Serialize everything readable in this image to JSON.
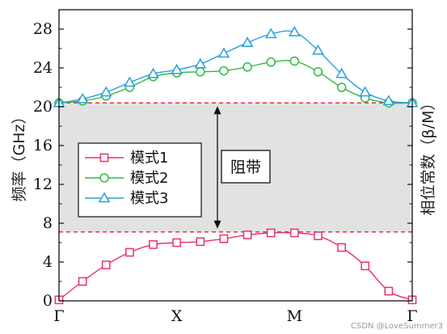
{
  "chart_data": {
    "type": "line",
    "title": "",
    "xlabel": "",
    "ylabel": "频率（GHz）",
    "y2label": "相位常数（β/M）",
    "categories": [
      "Γ",
      "",
      "",
      "",
      "",
      "X",
      "",
      "",
      "",
      "",
      "M",
      "",
      "",
      "",
      "",
      "Γ"
    ],
    "x_tick_labels": [
      "Γ",
      "X",
      "M",
      "Γ"
    ],
    "y_ticks": [
      "0",
      "4",
      "8",
      "12",
      "16",
      "20",
      "24",
      "28"
    ],
    "ylim": [
      0,
      30
    ],
    "grid": false,
    "legend_position": "center-left",
    "series": [
      {
        "name": "模式1",
        "color": "#e8326b",
        "marker": "square",
        "values": [
          0.1,
          2.0,
          3.7,
          5.0,
          5.8,
          6.0,
          6.1,
          6.4,
          6.8,
          7.0,
          7.0,
          6.7,
          5.5,
          3.6,
          1.0,
          0.1
        ]
      },
      {
        "name": "模式2",
        "color": "#2dbb46",
        "marker": "circle",
        "values": [
          20.4,
          20.6,
          21.1,
          22.0,
          23.1,
          23.5,
          23.6,
          23.7,
          24.1,
          24.6,
          24.7,
          23.6,
          22.0,
          20.9,
          20.4,
          20.4
        ]
      },
      {
        "name": "模式3",
        "color": "#2a9fdb",
        "marker": "triangle",
        "values": [
          20.4,
          20.8,
          21.5,
          22.5,
          23.4,
          23.8,
          24.4,
          25.5,
          26.6,
          27.5,
          27.7,
          25.8,
          23.4,
          21.5,
          20.6,
          20.4
        ]
      }
    ],
    "band_gap": {
      "lower": 7.1,
      "upper": 20.4,
      "fill_color": "#e2e2e2",
      "line_color": "#e8202a"
    },
    "annotation": "阻带",
    "watermark": "CSDN @LoveSummer3"
  }
}
